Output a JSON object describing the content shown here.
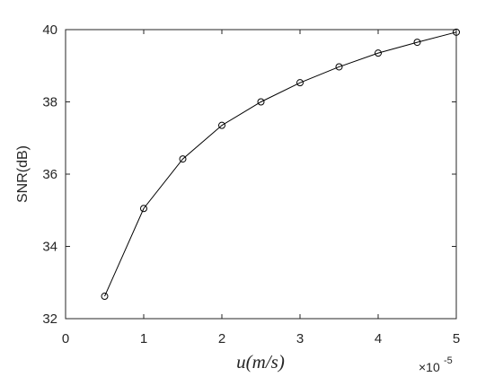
{
  "chart_data": {
    "type": "line",
    "x_label": "u(m/s)",
    "y_label": "SNR(dB)",
    "x_exponent_label": {
      "base": "×10",
      "exponent": "-5"
    },
    "x": [
      0.5,
      1,
      1.5,
      2,
      2.5,
      3,
      3.5,
      4,
      4.5,
      5
    ],
    "series": [
      {
        "color": "#000000",
        "marker": "circle",
        "values": [
          32.62,
          35.05,
          36.42,
          37.35,
          38.0,
          38.53,
          38.97,
          39.35,
          39.65,
          39.93
        ]
      }
    ],
    "xlim": [
      0,
      5
    ],
    "xticks": [
      0,
      1,
      2,
      3,
      4,
      5
    ],
    "ylim": [
      32,
      40
    ],
    "yticks": [
      32,
      34,
      36,
      38,
      40
    ],
    "grid": false
  }
}
